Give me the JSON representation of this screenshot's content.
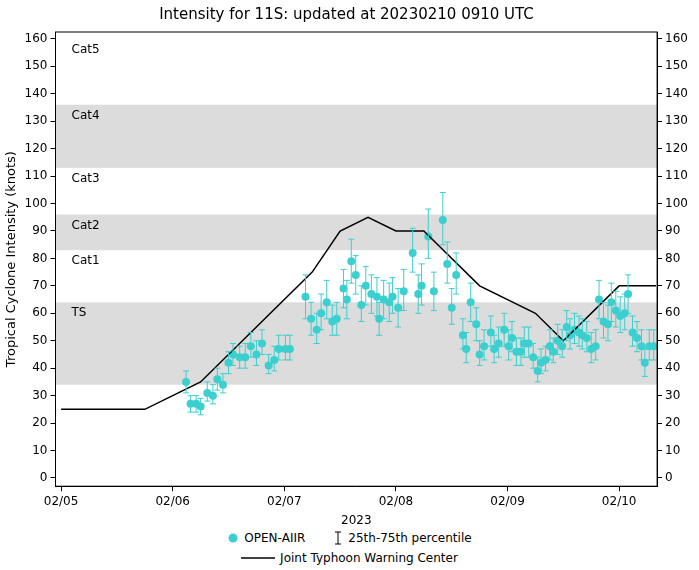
{
  "chart_data": {
    "type": "line",
    "title": "Intensity for 11S: updated at 20230210 0910 UTC",
    "ylabel": "Tropical Cyclone Intensity (knots)",
    "xlabel": "2023",
    "xlim": [
      4.95,
      10.34
    ],
    "xticks": [
      {
        "value": 5,
        "label": "02/05"
      },
      {
        "value": 6,
        "label": "02/06"
      },
      {
        "value": 7,
        "label": "02/07"
      },
      {
        "value": 8,
        "label": "02/08"
      },
      {
        "value": 9,
        "label": "02/09"
      },
      {
        "value": 10,
        "label": "02/10"
      }
    ],
    "ylim": [
      -3,
      162.5
    ],
    "yticks": [
      0,
      10,
      20,
      30,
      40,
      50,
      60,
      70,
      80,
      90,
      100,
      110,
      120,
      130,
      140,
      150,
      160
    ],
    "grid": false,
    "legend": "bottom",
    "bands": [
      {
        "label": "TS",
        "low": 34,
        "high": 64
      },
      {
        "label": "Cat1",
        "low": 64,
        "high": 83
      },
      {
        "label": "Cat2",
        "low": 83,
        "high": 96
      },
      {
        "label": "Cat3",
        "low": 96,
        "high": 113
      },
      {
        "label": "Cat4",
        "low": 113,
        "high": 136
      },
      {
        "label": "Cat5",
        "low": 136,
        "high": 160
      }
    ],
    "series": [
      {
        "name": "OPEN-AIIR",
        "type": "scatter",
        "color": "#3ccfcf",
        "marker": "circle",
        "error_label": "25th-75th percentile",
        "x": [
          6.12,
          6.16,
          6.21,
          6.25,
          6.31,
          6.36,
          6.4,
          6.45,
          6.5,
          6.54,
          6.6,
          6.65,
          6.7,
          6.75,
          6.8,
          6.86,
          6.91,
          6.95,
          7.01,
          7.05,
          7.19,
          7.24,
          7.29,
          7.33,
          7.38,
          7.43,
          7.47,
          7.53,
          7.56,
          7.6,
          7.64,
          7.69,
          7.73,
          7.78,
          7.83,
          7.85,
          7.89,
          7.94,
          7.97,
          8.02,
          8.07,
          8.15,
          8.2,
          8.23,
          8.29,
          8.34,
          8.42,
          8.46,
          8.5,
          8.54,
          8.6,
          8.63,
          8.67,
          8.72,
          8.75,
          8.79,
          8.85,
          8.88,
          8.92,
          8.97,
          9.01,
          9.04,
          9.08,
          9.12,
          9.15,
          9.19,
          9.23,
          9.27,
          9.3,
          9.34,
          9.38,
          9.41,
          9.45,
          9.49,
          9.53,
          9.56,
          9.6,
          9.64,
          9.67,
          9.71,
          9.75,
          9.79,
          9.82,
          9.86,
          9.9,
          9.93,
          9.97,
          10.01,
          10.05,
          10.08,
          10.12,
          10.16,
          10.2,
          10.23,
          10.27,
          10.31
        ],
        "values": [
          35,
          27,
          27,
          26,
          31,
          30,
          36,
          34,
          42,
          45,
          44,
          44,
          48,
          45,
          49,
          41,
          43,
          47,
          47,
          47,
          66,
          58,
          54,
          60,
          64,
          57,
          58,
          69,
          65,
          79,
          74,
          63,
          70,
          67,
          66,
          58,
          65,
          64,
          66,
          62,
          68,
          82,
          67,
          70,
          88,
          68,
          94,
          78,
          62,
          74,
          52,
          47,
          64,
          56,
          45,
          48,
          53,
          47,
          49,
          54,
          48,
          51,
          46,
          46,
          49,
          49,
          44,
          39,
          42,
          43,
          48,
          46,
          50,
          48,
          55,
          52,
          54,
          53,
          52,
          51,
          47,
          48,
          65,
          57,
          56,
          64,
          61,
          59,
          60,
          67,
          53,
          51,
          48,
          42,
          48,
          48
        ],
        "low": [
          31,
          24,
          24,
          23,
          28,
          27,
          32,
          31,
          38,
          41,
          40,
          40,
          44,
          41,
          45,
          38,
          39,
          43,
          43,
          43,
          58,
          52,
          49,
          54,
          58,
          52,
          52,
          62,
          58,
          71,
          67,
          57,
          63,
          60,
          59,
          52,
          58,
          57,
          60,
          55,
          61,
          75,
          60,
          63,
          80,
          61,
          85,
          71,
          56,
          67,
          47,
          42,
          57,
          50,
          41,
          43,
          48,
          42,
          44,
          48,
          43,
          46,
          41,
          41,
          44,
          44,
          40,
          35,
          38,
          39,
          43,
          42,
          45,
          44,
          50,
          47,
          49,
          48,
          47,
          46,
          42,
          43,
          58,
          51,
          50,
          57,
          55,
          53,
          54,
          60,
          48,
          46,
          43,
          37,
          43,
          43
        ],
        "high": [
          39,
          30,
          30,
          29,
          35,
          34,
          40,
          38,
          46,
          49,
          48,
          49,
          53,
          50,
          54,
          45,
          48,
          52,
          52,
          52,
          74,
          64,
          60,
          67,
          72,
          63,
          64,
          76,
          72,
          87,
          81,
          70,
          77,
          74,
          73,
          64,
          72,
          71,
          73,
          69,
          76,
          91,
          74,
          78,
          98,
          75,
          104,
          86,
          69,
          82,
          58,
          53,
          71,
          62,
          50,
          54,
          59,
          52,
          55,
          60,
          54,
          57,
          51,
          51,
          55,
          55,
          49,
          44,
          47,
          48,
          54,
          51,
          56,
          54,
          61,
          58,
          60,
          59,
          58,
          57,
          53,
          54,
          72,
          64,
          63,
          71,
          68,
          66,
          67,
          74,
          59,
          57,
          54,
          47,
          54,
          54
        ]
      },
      {
        "name": "Joint Typhoon Warning Center",
        "type": "line",
        "color": "#000000",
        "marker": "none",
        "line_style": "solid",
        "x": [
          5.0,
          5.75,
          6.25,
          7.25,
          7.5,
          7.75,
          8.0,
          8.25,
          8.75,
          9.25,
          9.5,
          10.0,
          10.33
        ],
        "values": [
          25,
          25,
          35,
          75,
          90,
          95,
          90,
          90,
          70,
          60,
          50,
          70,
          70
        ]
      }
    ]
  }
}
